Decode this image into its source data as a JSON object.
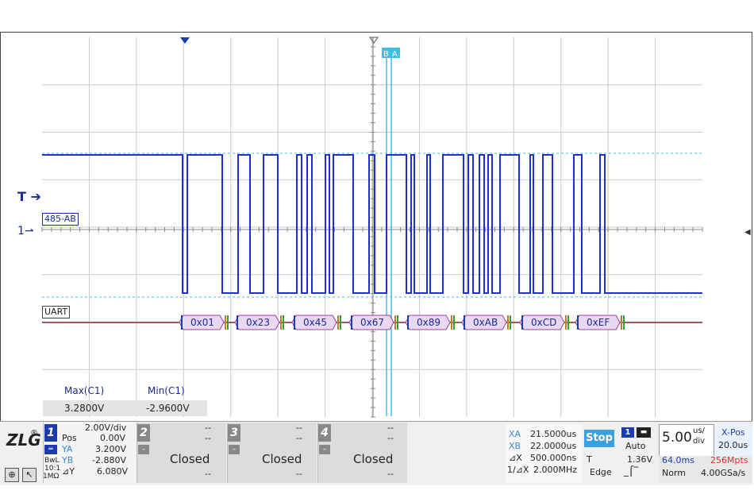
{
  "display": {
    "trigger_marker": "T",
    "channel_marker": "1",
    "cursor_b_label": "B",
    "cursor_a_label": "A",
    "channel_tag": "485-AB",
    "decoder_tag": "UART",
    "decoded_bytes": [
      "0x01",
      "0x23",
      "0x45",
      "0x67",
      "0x89",
      "0xAB",
      "0xCD",
      "0xEF"
    ]
  },
  "measurements": {
    "max_label": "Max(C1)",
    "min_label": "Min(C1)",
    "max_value": "3.2800V",
    "min_value": "-2.9600V"
  },
  "channels": [
    {
      "number": "1",
      "scale": "2.00V/div",
      "pos_label": "Pos",
      "pos_value": "0.00V",
      "ya_label": "YA",
      "ya_value": "3.200V",
      "yb_label": "YB",
      "yb_value": "-2.880V",
      "dy_label": "⊿Y",
      "dy_value": "6.080V",
      "bw_label": "BwL",
      "probe": "10:1",
      "impedance": "1MΩ",
      "color": "#1a3cb0"
    },
    {
      "number": "2",
      "state": "Closed",
      "dash1": "--",
      "dash2": "--",
      "dash3": "--"
    },
    {
      "number": "3",
      "state": "Closed",
      "dash1": "--",
      "dash2": "--",
      "dash3": "--"
    },
    {
      "number": "4",
      "state": "Closed",
      "dash1": "--",
      "dash2": "--",
      "dash3": "--"
    }
  ],
  "cursors": {
    "xa_label": "XA",
    "xa_value": "21.5000us",
    "xb_label": "XB",
    "xb_value": "22.0000us",
    "dx_label": "⊿X",
    "dx_value": "500.000ns",
    "inv_label": "1/⊿X",
    "inv_value": "2.000MHz"
  },
  "acquisition": {
    "run_state": "Stop",
    "trigger_source": "1",
    "trigger_mode": "Auto",
    "trigger_level_label": "T",
    "trigger_level": "1.36V",
    "trigger_type": "Edge",
    "timebase_value": "5.00",
    "timebase_unit_top": "us/",
    "timebase_unit_bottom": "div",
    "xpos_label": "X-Pos",
    "xpos_value": "20.0us",
    "record_time": "64.0ms",
    "memory_depth": "256Mpts",
    "acq_mode": "Norm",
    "sample_rate": "4.00GSa/s"
  },
  "brand": {
    "logo": "ZLG",
    "registered": "®"
  },
  "colors": {
    "trace": "#2030d0",
    "cursor": "#40c0e0",
    "decode": "#8a2a2a",
    "accent": "#1a3cb0"
  }
}
